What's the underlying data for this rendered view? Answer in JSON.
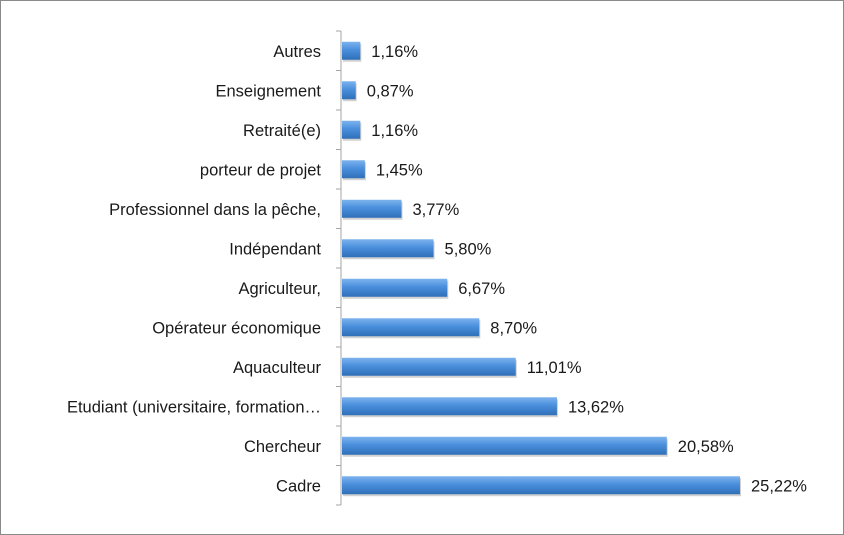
{
  "chart_data": {
    "type": "bar",
    "orientation": "horizontal",
    "categories": [
      "Cadre",
      "Chercheur",
      "Etudiant (universitaire, formation…",
      "Aquaculteur",
      "Opérateur économique",
      "Agriculteur,",
      "Indépendant",
      "Professionnel dans la pêche,",
      "porteur de projet",
      "Retraité(e)",
      "Enseignement",
      "Autres"
    ],
    "values": [
      25.22,
      20.58,
      13.62,
      11.01,
      8.7,
      6.67,
      5.8,
      3.77,
      1.45,
      1.16,
      0.87,
      1.16
    ],
    "value_labels": [
      "25,22%",
      "20,58%",
      "13,62%",
      "11,01%",
      "8,70%",
      "6,67%",
      "5,80%",
      "3,77%",
      "1,45%",
      "1,16%",
      "0,87%",
      "1,16%"
    ],
    "title": "",
    "xlabel": "",
    "ylabel": "",
    "xlim": [
      0,
      25.22
    ],
    "grid": false,
    "legend": "none",
    "colors": {
      "bar": "#4a8fdc",
      "bar_light": "#7db3ee",
      "bar_dark": "#2f6fb8",
      "axis": "#a6a6a6",
      "border": "#8a8a8a"
    }
  }
}
